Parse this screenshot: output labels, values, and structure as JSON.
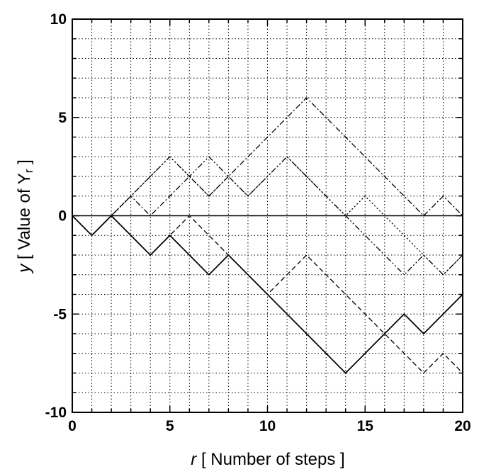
{
  "chart_data": {
    "type": "line",
    "xlabel": {
      "var": "r",
      "text": " [ Number of steps ]"
    },
    "ylabel": {
      "var": "y",
      "pre": " [ Value of Y",
      "sub": "r",
      "post": " ]"
    },
    "xlim": [
      0,
      20
    ],
    "ylim": [
      -10,
      10
    ],
    "x_ticks": [
      "0",
      "5",
      "10",
      "15",
      "20"
    ],
    "y_ticks": [
      "10",
      "5",
      "0",
      "-5",
      "-10"
    ],
    "x_minor_step": 1,
    "y_minor_step": 1,
    "grid": true,
    "grid_style": "dotted",
    "legend": "none",
    "reference_line_y": 0,
    "x": [
      0,
      1,
      2,
      3,
      4,
      5,
      6,
      7,
      8,
      9,
      10,
      11,
      12,
      13,
      14,
      15,
      16,
      17,
      18,
      19,
      20
    ],
    "series": [
      {
        "style": "solid",
        "values": [
          0,
          -1,
          0,
          -1,
          -2,
          -1,
          -2,
          -3,
          -2,
          -3,
          -4,
          -5,
          -6,
          -7,
          -8,
          -7,
          -6,
          -5,
          -6,
          -5,
          -4
        ]
      },
      {
        "style": "dash-dot",
        "values": [
          0,
          -1,
          0,
          1,
          0,
          1,
          2,
          1,
          2,
          3,
          4,
          5,
          6,
          5,
          4,
          3,
          2,
          1,
          0,
          1,
          0
        ]
      },
      {
        "style": "dotted",
        "values": [
          0,
          -1,
          0,
          1,
          2,
          3,
          2,
          1,
          2,
          1,
          2,
          3,
          2,
          1,
          0,
          1,
          0,
          -1,
          -2,
          -3,
          -2
        ]
      },
      {
        "style": "dash-dot-dot",
        "values": [
          0,
          -1,
          0,
          1,
          2,
          3,
          2,
          3,
          2,
          1,
          2,
          3,
          2,
          1,
          0,
          -1,
          -2,
          -3,
          -2,
          -3,
          -2
        ]
      },
      {
        "style": "dashed",
        "values": [
          0,
          -1,
          0,
          -1,
          -2,
          -1,
          0,
          -1,
          -2,
          -3,
          -4,
          -3,
          -2,
          -3,
          -4,
          -5,
          -6,
          -7,
          -8,
          -7,
          -8
        ]
      }
    ]
  }
}
